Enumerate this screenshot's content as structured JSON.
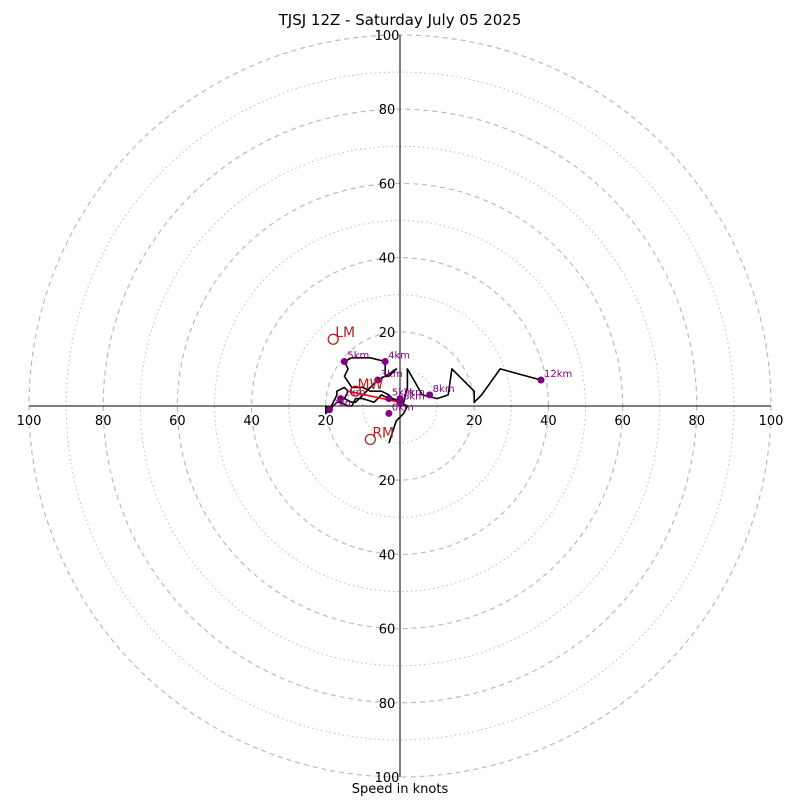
{
  "chart_data": {
    "type": "hodograph",
    "title": "TJSJ 12Z - Saturday July 05 2025",
    "xlabel": "Speed in knots",
    "ring_step": 20,
    "ring_max": 100,
    "tick_labels": [
      "20",
      "40",
      "60",
      "80",
      "100"
    ],
    "colors": {
      "trace": "#000000",
      "height_marker": "#800080",
      "storm_point": "#b22222",
      "mean_wind_line": "#ff0000",
      "grid": "#bbbbbb"
    },
    "trace": [
      [
        -3,
        -10
      ],
      [
        -2,
        -7
      ],
      [
        -1,
        -4
      ],
      [
        1,
        -2
      ],
      [
        2,
        0
      ],
      [
        0,
        1
      ],
      [
        -3,
        2
      ],
      [
        -5,
        3
      ],
      [
        -7,
        1
      ],
      [
        -10,
        2
      ],
      [
        -12,
        2
      ],
      [
        -13,
        0
      ],
      [
        -14,
        0
      ],
      [
        -16,
        1
      ],
      [
        -17,
        1
      ],
      [
        -18,
        0
      ],
      [
        -19,
        -1
      ],
      [
        -20,
        0
      ],
      [
        -20,
        -2
      ],
      [
        -19,
        -1
      ],
      [
        -18,
        1
      ],
      [
        -17,
        3
      ],
      [
        -17,
        4
      ],
      [
        -15,
        5
      ],
      [
        -14,
        4
      ],
      [
        -15,
        2
      ],
      [
        -13,
        1
      ],
      [
        -12,
        1
      ],
      [
        -10,
        3
      ],
      [
        -8,
        5
      ],
      [
        -6,
        7
      ],
      [
        -4,
        8
      ],
      [
        -3,
        8
      ],
      [
        -2,
        9
      ],
      [
        -1,
        10
      ],
      [
        -4,
        8
      ],
      [
        -4,
        12
      ],
      [
        -8,
        13
      ],
      [
        -13,
        13
      ],
      [
        -15,
        12
      ],
      [
        -14,
        10
      ],
      [
        -15,
        8
      ],
      [
        -13,
        5
      ],
      [
        -10,
        5
      ],
      [
        -8,
        4
      ],
      [
        -5,
        4
      ],
      [
        -3,
        3
      ],
      [
        -2,
        2
      ],
      [
        1,
        1
      ],
      [
        2,
        5
      ],
      [
        2,
        10
      ],
      [
        6,
        3
      ],
      [
        10,
        2
      ],
      [
        13,
        3
      ],
      [
        14,
        10
      ],
      [
        20,
        4
      ],
      [
        20,
        1
      ],
      [
        22,
        3
      ],
      [
        27,
        10
      ],
      [
        38,
        7
      ]
    ],
    "height_markers": [
      {
        "label": "0km",
        "u": -3,
        "v": -2
      },
      {
        "label": "1km",
        "u": -16,
        "v": 2
      },
      {
        "label": "2km",
        "u": -19,
        "v": -1
      },
      {
        "label": "3km",
        "u": -6,
        "v": 7
      },
      {
        "label": "4km",
        "u": -4,
        "v": 12
      },
      {
        "label": "5km",
        "u": -15,
        "v": 12
      },
      {
        "label": "5km",
        "u": -3,
        "v": 2
      },
      {
        "label": "6km",
        "u": 0,
        "v": 1
      },
      {
        "label": "7km",
        "u": 0,
        "v": 2
      },
      {
        "label": "8km",
        "u": 8,
        "v": 3
      },
      {
        "label": "12km",
        "u": 38,
        "v": 7
      }
    ],
    "storm_points": [
      {
        "label": "LM",
        "u": -18,
        "v": 18
      },
      {
        "label": "MW",
        "u": -12,
        "v": 4
      },
      {
        "label": "RM",
        "u": -8,
        "v": -9
      }
    ],
    "mean_wind_line": [
      [
        -14,
        4
      ],
      [
        0,
        1
      ]
    ]
  }
}
